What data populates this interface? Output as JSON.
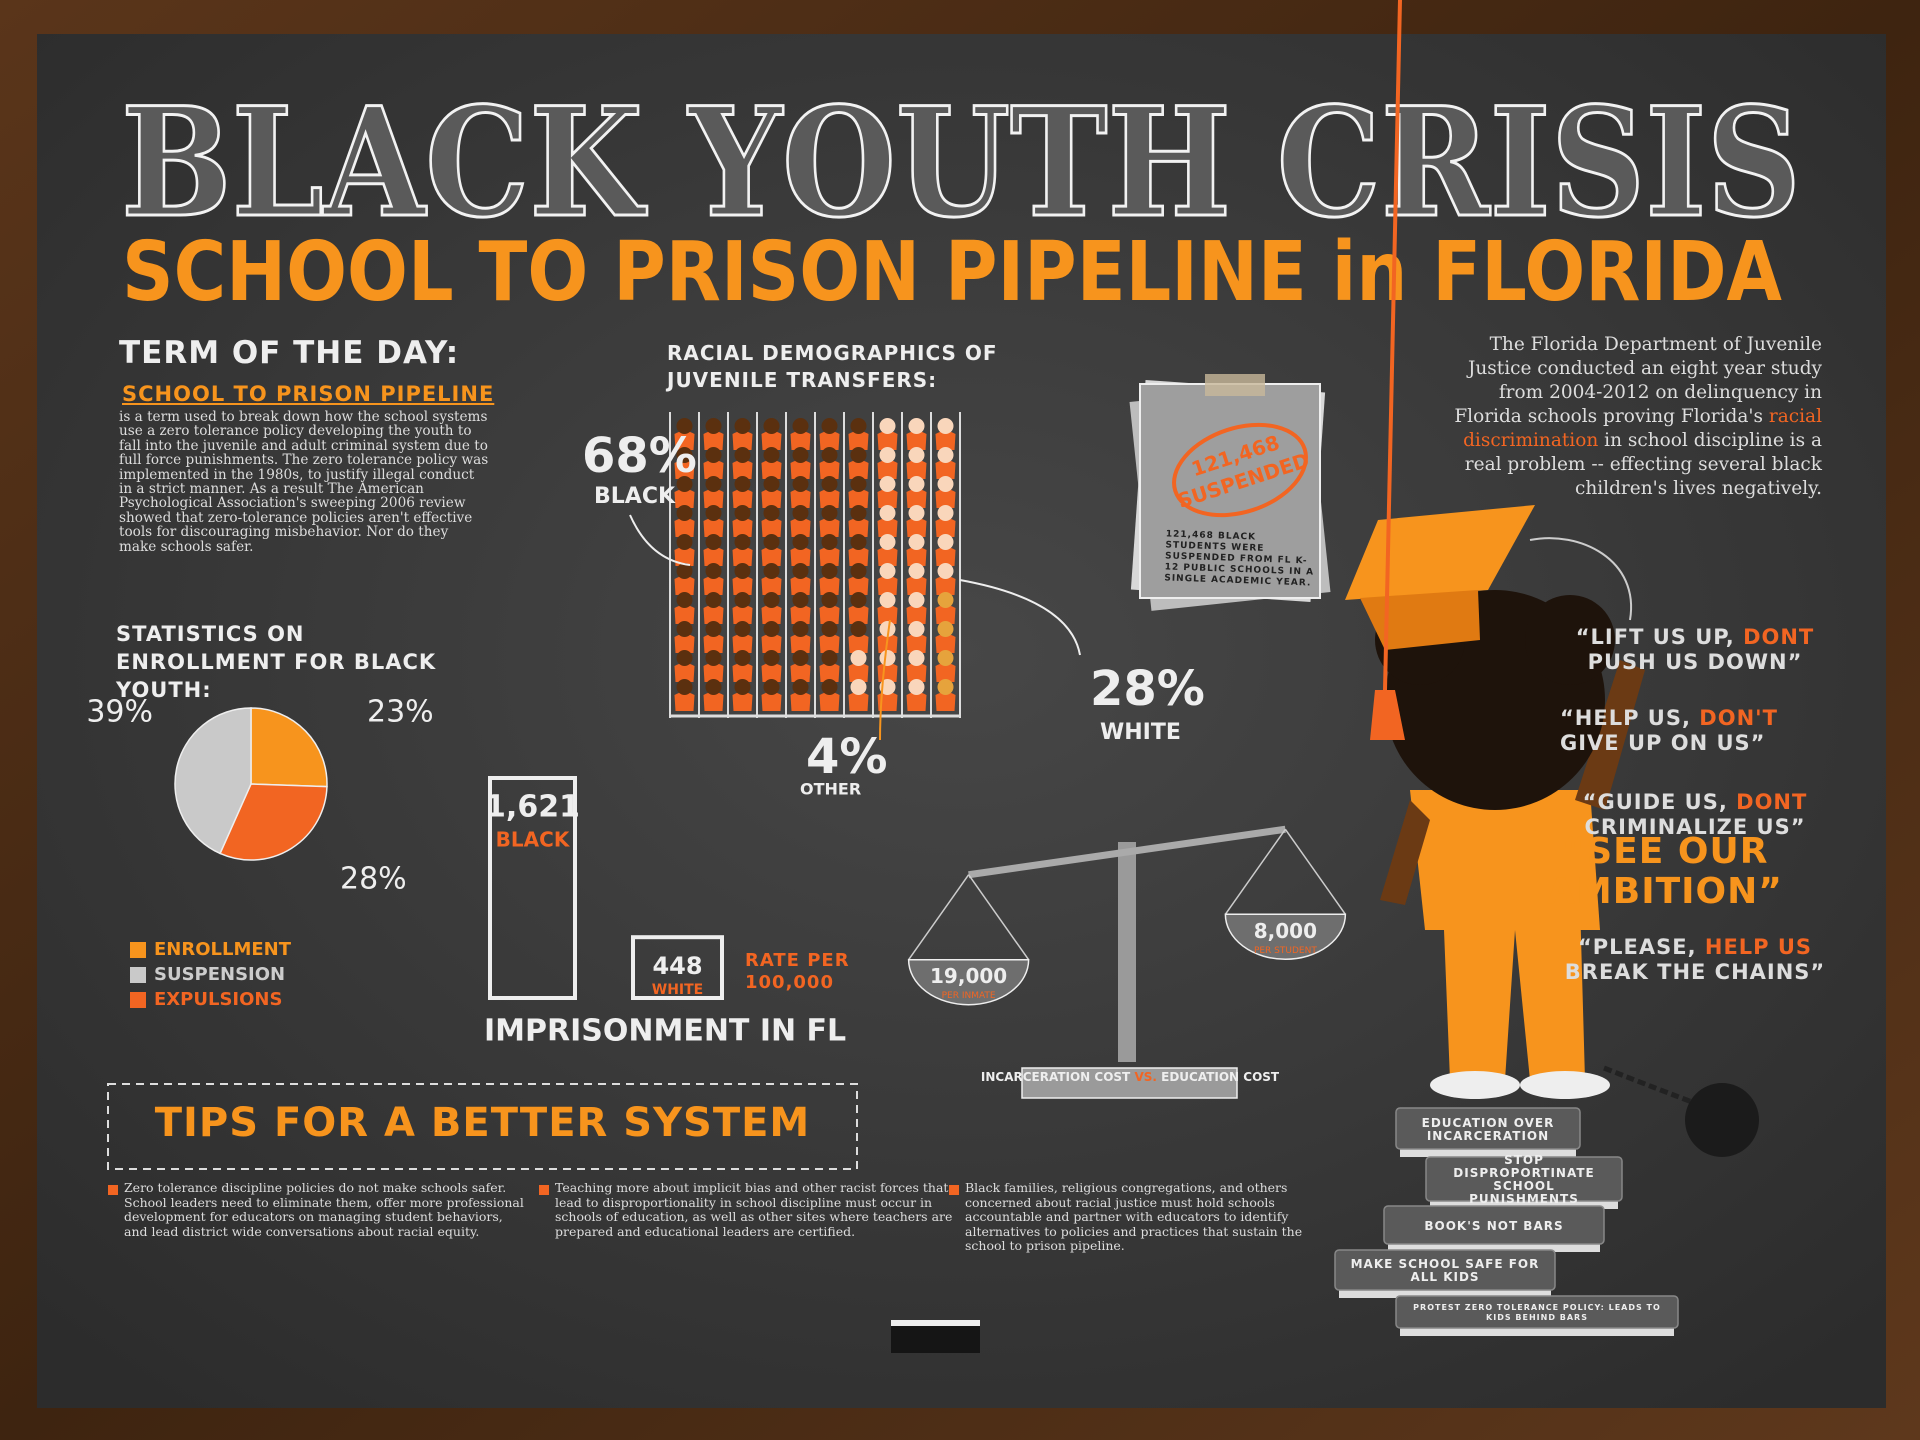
{
  "title": "BLACK YOUTH CRISIS",
  "subtitle": "SCHOOL TO PRISON PIPELINE in FLORIDA",
  "term": {
    "heading": "TERM OF THE DAY:",
    "term": "SCHOOL TO PRISON PIPELINE",
    "definition": "is a term used to break down how the school systems use a zero tolerance policy developing the youth to fall into the juvenile and adult criminal system due to full force punishments. The zero tolerance policy was implemented in the 1980s, to justify illegal conduct in a strict manner. As a result The American Psychological Association's sweeping 2006 review showed that zero-tolerance policies aren't effective tools for discouraging misbehavior. Nor do they make schools safer."
  },
  "study": {
    "before": "The Florida Department of Juvenile Justice conducted an eight year study from 2004-2012 on delinquency in Florida schools proving Florida's",
    "highlight": "racial discrimination",
    "after": "in school discipline is a real problem -- effecting several black children's lives negatively."
  },
  "suspended": {
    "stamp_number": "121,468",
    "stamp_word": "SUSPENDED",
    "note": "121,468 BLACK STUDENTS WERE SUSPENDED FROM FL K-12 PUBLIC SCHOOLS IN A SINGLE ACADEMIC YEAR."
  },
  "chart_data": [
    {
      "type": "pie",
      "title": "STATISTICS ON ENROLLMENT FOR BLACK YOUTH:",
      "categories": [
        "ENROLLMENT",
        "SUSPENSION",
        "EXPULSIONS"
      ],
      "values": [
        23,
        39,
        28
      ],
      "value_labels": [
        "23%",
        "39%",
        "28%"
      ],
      "colors": [
        "#f7941d",
        "#c9c9c9",
        "#f26522"
      ]
    },
    {
      "type": "pictogram",
      "title": "RACIAL DEMOGRAPHICS OF JUVENILE TRANSFERS:",
      "categories": [
        "BLACK",
        "WHITE",
        "OTHER"
      ],
      "values": [
        68,
        28,
        4
      ],
      "value_labels": [
        "68%",
        "28%",
        "4%"
      ],
      "colors": [
        "#5b300f",
        "#f9d6bb",
        "#e6a33c"
      ]
    },
    {
      "type": "bar",
      "title": "IMPRISONMENT IN FL",
      "note": "RATE PER 100,000",
      "categories": [
        "BLACK",
        "WHITE"
      ],
      "values": [
        1621,
        448
      ],
      "value_labels": [
        "1,621",
        "448"
      ]
    },
    {
      "type": "balance",
      "categories": [
        "INCARCERATION COST",
        "EDUCATION COST"
      ],
      "connector": "VS.",
      "values": [
        19000,
        8000
      ],
      "value_labels": [
        "19,000",
        "8,000"
      ],
      "units": [
        "PER INMATE",
        "PER STUDENT"
      ]
    }
  ],
  "quotes": [
    {
      "before": "“LIFT US UP,",
      "highlight": "DONT",
      "after": "PUSH US DOWN”"
    },
    {
      "before": "“HELP US,",
      "highlight": "DON'T",
      "after": "GIVE UP ON US”"
    },
    {
      "before": "“GUIDE US,",
      "highlight": "DONT",
      "after": "CRIMINALIZE US”"
    },
    {
      "before": "",
      "highlight": "“SEE OUR AMBITION”",
      "after": ""
    },
    {
      "before": "“PLEASE,",
      "highlight": "HELP US",
      "after": "BREAK THE CHAINS”"
    }
  ],
  "books": [
    "EDUCATION OVER INCARCERATION",
    "STOP DISPROPORTINATE SCHOOL PUNISHMENTS",
    "BOOK'S NOT BARS",
    "MAKE SCHOOL SAFE FOR ALL KIDS",
    "PROTEST ZERO TOLERANCE POLICY: LEADS TO KIDS BEHIND BARS"
  ],
  "tips": {
    "title": "TIPS FOR A BETTER SYSTEM",
    "items": [
      "Zero tolerance discipline policies do not make schools safer. School leaders need to eliminate them, offer more professional development for educators on managing student behaviors, and lead district wide conversations about racial equity.",
      "Teaching more about implicit bias and other racist forces that lead to disproportionality in school discipline must occur in schools of education, as well as other sites where teachers are prepared and educational leaders are certified.",
      "Black families, religious congregations, and others concerned about racial justice must hold schools accountable and partner with educators to identify alternatives to policies and practices that sustain the school to prison pipeline."
    ]
  }
}
